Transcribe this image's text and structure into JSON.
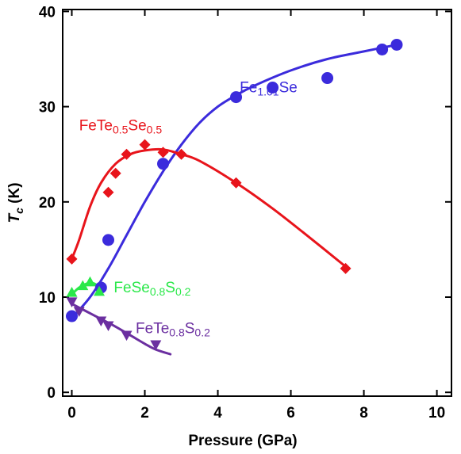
{
  "chart_data": {
    "type": "scatter",
    "xlabel": "Pressure (GPa)",
    "ylabel_main": "T",
    "ylabel_sub": "c",
    "ylabel_unit": " (K)",
    "xlim": [
      -0.25,
      10.4
    ],
    "ylim": [
      -0.4,
      40.2
    ],
    "xticks": [
      0,
      2,
      4,
      6,
      8,
      10
    ],
    "yticks": [
      0,
      10,
      20,
      30,
      40
    ],
    "grid": false,
    "legend": "inline labels",
    "series": [
      {
        "label_parts": [
          {
            "t": "Fe",
            "sub": false
          },
          {
            "t": "1.01",
            "sub": true
          },
          {
            "t": "Se",
            "sub": false
          }
        ],
        "color": "#3b2bdc",
        "marker": "circle",
        "points": [
          [
            0,
            8
          ],
          [
            0.8,
            11
          ],
          [
            1,
            16
          ],
          [
            2.5,
            24
          ],
          [
            4.5,
            31
          ],
          [
            5.5,
            32
          ],
          [
            7,
            33
          ],
          [
            8.5,
            36
          ],
          [
            8.9,
            36.5
          ]
        ],
        "fit": [
          [
            0,
            7.8
          ],
          [
            0.5,
            10
          ],
          [
            1,
            13
          ],
          [
            1.5,
            16.5
          ],
          [
            2,
            20
          ],
          [
            2.5,
            23.2
          ],
          [
            3,
            26
          ],
          [
            3.5,
            28.3
          ],
          [
            4,
            30
          ],
          [
            4.5,
            31.2
          ],
          [
            5,
            32.2
          ],
          [
            6,
            33.8
          ],
          [
            7,
            35
          ],
          [
            8,
            35.8
          ],
          [
            8.9,
            36.5
          ]
        ],
        "label_pos": [
          4.6,
          31.5
        ]
      },
      {
        "label_parts": [
          {
            "t": "FeTe",
            "sub": false
          },
          {
            "t": "0.5",
            "sub": true
          },
          {
            "t": "Se",
            "sub": false
          },
          {
            "t": "0.5",
            "sub": true
          }
        ],
        "color": "#e8141b",
        "marker": "diamond",
        "points": [
          [
            0,
            14
          ],
          [
            1,
            21
          ],
          [
            1.2,
            23
          ],
          [
            1.5,
            25
          ],
          [
            2,
            26
          ],
          [
            2.5,
            25.2
          ],
          [
            3,
            25
          ],
          [
            4.5,
            22
          ],
          [
            7.5,
            13
          ]
        ],
        "fit": [
          [
            0,
            14
          ],
          [
            0.2,
            16
          ],
          [
            0.5,
            19.5
          ],
          [
            0.8,
            22
          ],
          [
            1.2,
            24
          ],
          [
            1.6,
            25
          ],
          [
            2,
            25.4
          ],
          [
            2.5,
            25.5
          ],
          [
            3,
            25
          ],
          [
            3.5,
            24.3
          ],
          [
            4.5,
            22
          ],
          [
            5.5,
            19.3
          ],
          [
            6.5,
            16.3
          ],
          [
            7.5,
            13.2
          ]
        ],
        "label_pos": [
          0.2,
          27.5
        ]
      },
      {
        "label_parts": [
          {
            "t": "FeSe",
            "sub": false
          },
          {
            "t": "0.8",
            "sub": true
          },
          {
            "t": "S",
            "sub": false
          },
          {
            "t": "0.2",
            "sub": true
          }
        ],
        "color": "#2be84a",
        "marker": "triangle-up",
        "points": [
          [
            0,
            10.5
          ],
          [
            0.3,
            11.2
          ],
          [
            0.5,
            11.6
          ],
          [
            0.75,
            10.6
          ]
        ],
        "fit": [
          [
            0,
            10.3
          ],
          [
            0.2,
            11
          ],
          [
            0.4,
            11.4
          ],
          [
            0.55,
            11.5
          ],
          [
            0.7,
            11.2
          ],
          [
            0.8,
            10.7
          ]
        ],
        "label_pos": [
          1.15,
          10.5
        ]
      },
      {
        "label_parts": [
          {
            "t": "FeTe",
            "sub": false
          },
          {
            "t": "0.8",
            "sub": true
          },
          {
            "t": "S",
            "sub": false
          },
          {
            "t": "0.2",
            "sub": true
          }
        ],
        "color": "#6b2fa0",
        "marker": "triangle-down",
        "points": [
          [
            0,
            9.5
          ],
          [
            0.2,
            8.5
          ],
          [
            0.8,
            7.5
          ],
          [
            1,
            7
          ],
          [
            1.5,
            6
          ],
          [
            2.3,
            5
          ]
        ],
        "fit": [
          [
            0,
            9.3
          ],
          [
            0.4,
            8.5
          ],
          [
            0.8,
            7.7
          ],
          [
            1.2,
            6.9
          ],
          [
            1.6,
            6
          ],
          [
            2,
            5.1
          ],
          [
            2.3,
            4.5
          ],
          [
            2.7,
            4
          ]
        ],
        "label_pos": [
          1.75,
          6.2
        ]
      }
    ]
  }
}
